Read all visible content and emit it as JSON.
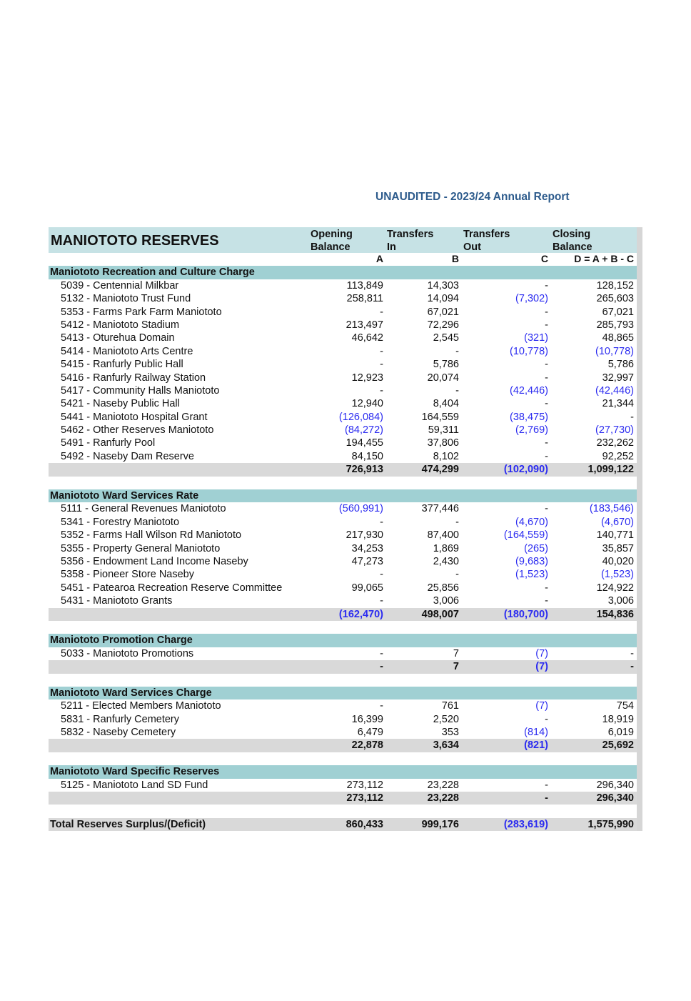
{
  "report_title": "UNAUDITED - 2023/24 Annual Report",
  "table_title": "MANIOTOTO RESERVES",
  "columns": [
    {
      "line1": "Opening",
      "line2": "Balance",
      "letter": "A"
    },
    {
      "line1": "Transfers",
      "line2": "In",
      "letter": "B"
    },
    {
      "line1": "Transfers",
      "line2": "Out",
      "letter": "C"
    },
    {
      "line1": "Closing",
      "line2": "Balance",
      "letter": "D = A + B - C"
    }
  ],
  "sections": [
    {
      "title": "Maniototo Recreation and Culture Charge",
      "items": [
        {
          "label": "5039 - Centennial Milkbar",
          "a": "113,849",
          "b": "14,303",
          "c": "-",
          "d": "128,152"
        },
        {
          "label": "5132 - Maniototo Trust Fund",
          "a": "258,811",
          "b": "14,094",
          "c": "(7,302)",
          "d": "265,603"
        },
        {
          "label": "5353 - Farms Park Farm Maniototo",
          "a": "-",
          "b": "67,021",
          "c": "-",
          "d": "67,021"
        },
        {
          "label": "5412 - Maniototo Stadium",
          "a": "213,497",
          "b": "72,296",
          "c": "-",
          "d": "285,793"
        },
        {
          "label": "5413 - Oturehua Domain",
          "a": "46,642",
          "b": "2,545",
          "c": "(321)",
          "d": "48,865"
        },
        {
          "label": "5414 - Maniototo Arts Centre",
          "a": "-",
          "b": "-",
          "c": "(10,778)",
          "d": "(10,778)"
        },
        {
          "label": "5415 - Ranfurly Public Hall",
          "a": "-",
          "b": "5,786",
          "c": "-",
          "d": "5,786"
        },
        {
          "label": "5416 - Ranfurly Railway Station",
          "a": "12,923",
          "b": "20,074",
          "c": "-",
          "d": "32,997"
        },
        {
          "label": "5417 - Community Halls Maniototo",
          "a": "-",
          "b": "-",
          "c": "(42,446)",
          "d": "(42,446)"
        },
        {
          "label": "5421 - Naseby Public Hall",
          "a": "12,940",
          "b": "8,404",
          "c": "-",
          "d": "21,344"
        },
        {
          "label": "5441 - Maniototo Hospital Grant",
          "a": "(126,084)",
          "b": "164,559",
          "c": "(38,475)",
          "d": "-"
        },
        {
          "label": "5462 - Other Reserves Maniototo",
          "a": "(84,272)",
          "b": "59,311",
          "c": "(2,769)",
          "d": "(27,730)"
        },
        {
          "label": "5491 - Ranfurly Pool",
          "a": "194,455",
          "b": "37,806",
          "c": "-",
          "d": "232,262"
        },
        {
          "label": "5492 - Naseby Dam Reserve",
          "a": "84,150",
          "b": "8,102",
          "c": "-",
          "d": "92,252"
        }
      ],
      "total": {
        "a": "726,913",
        "b": "474,299",
        "c": "(102,090)",
        "d": "1,099,122"
      }
    },
    {
      "title": "Maniototo Ward Services Rate",
      "items": [
        {
          "label": "5111 - General Revenues Maniototo",
          "a": "(560,991)",
          "b": "377,446",
          "c": "-",
          "d": "(183,546)"
        },
        {
          "label": "5341 - Forestry Maniototo",
          "a": "-",
          "b": "-",
          "c": "(4,670)",
          "d": "(4,670)"
        },
        {
          "label": "5352 - Farms  Hall Wilson Rd Maniototo",
          "a": "217,930",
          "b": "87,400",
          "c": "(164,559)",
          "d": "140,771"
        },
        {
          "label": "5355 - Property General Maniototo",
          "a": "34,253",
          "b": "1,869",
          "c": "(265)",
          "d": "35,857"
        },
        {
          "label": "5356 - Endowment Land Income Naseby",
          "a": "47,273",
          "b": "2,430",
          "c": "(9,683)",
          "d": "40,020"
        },
        {
          "label": "5358 - Pioneer Store Naseby",
          "a": "-",
          "b": "-",
          "c": "(1,523)",
          "d": "(1,523)"
        },
        {
          "label": "5451 - Patearoa Recreation Reserve Committee",
          "a": "99,065",
          "b": "25,856",
          "c": "-",
          "d": "124,922"
        },
        {
          "label": "5431 - Maniototo Grants",
          "a": "-",
          "b": "3,006",
          "c": "-",
          "d": "3,006"
        }
      ],
      "total": {
        "a": "(162,470)",
        "b": "498,007",
        "c": "(180,700)",
        "d": "154,836"
      }
    },
    {
      "title": "Maniototo Promotion Charge",
      "items": [
        {
          "label": "5033 - Maniototo Promotions",
          "a": "-",
          "b": "7",
          "c": "(7)",
          "d": "-"
        }
      ],
      "total": {
        "a": "-",
        "b": "7",
        "c": "(7)",
        "d": "-"
      }
    },
    {
      "title": "Maniototo Ward Services Charge",
      "items": [
        {
          "label": "5211 - Elected Members Maniototo",
          "a": "-",
          "b": "761",
          "c": "(7)",
          "d": "754"
        },
        {
          "label": "5831 - Ranfurly Cemetery",
          "a": "16,399",
          "b": "2,520",
          "c": "-",
          "d": "18,919"
        },
        {
          "label": "5832 - Naseby Cemetery",
          "a": "6,479",
          "b": "353",
          "c": "(814)",
          "d": "6,019"
        }
      ],
      "total": {
        "a": "22,878",
        "b": "3,634",
        "c": "(821)",
        "d": "25,692"
      }
    },
    {
      "title": "Maniototo Ward Specific Reserves",
      "items": [
        {
          "label": "5125 - Maniototo Land SD Fund",
          "a": "273,112",
          "b": "23,228",
          "c": "-",
          "d": "296,340"
        }
      ],
      "total": {
        "a": "273,112",
        "b": "23,228",
        "c": "-",
        "d": "296,340"
      }
    }
  ],
  "grand_total": {
    "label": "Total Reserves Surplus/(Deficit)",
    "a": "860,433",
    "b": "999,176",
    "c": "(283,619)",
    "d": "1,575,990"
  },
  "colors": {
    "negative": "#2b2bf0",
    "header": "#c6e2e5",
    "section": "#a0d0d3",
    "total": "#d9d9d9",
    "title": "#2d5b8c"
  }
}
